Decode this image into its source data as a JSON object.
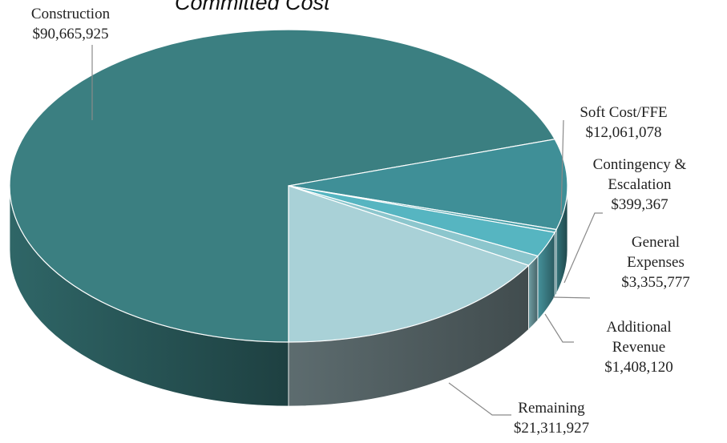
{
  "chart_data": {
    "type": "pie",
    "title": "Committed Cost",
    "categories": [
      "Construction",
      "Soft Cost/FFE",
      "Contingency & Escalation",
      "General Expenses",
      "Additional Revenue",
      "Remaining"
    ],
    "values": [
      90665925,
      12061078,
      399367,
      3355777,
      1408120,
      21311927
    ],
    "value_labels": [
      "$90,665,925",
      "$12,061,078",
      "$399,367",
      "$3,355,777",
      "$1,408,120",
      "$21,311,927"
    ],
    "colors": [
      "#3b7f81",
      "#3f8f97",
      "#49a1aa",
      "#56b5c1",
      "#8cc6cd",
      "#a9d1d7"
    ]
  }
}
